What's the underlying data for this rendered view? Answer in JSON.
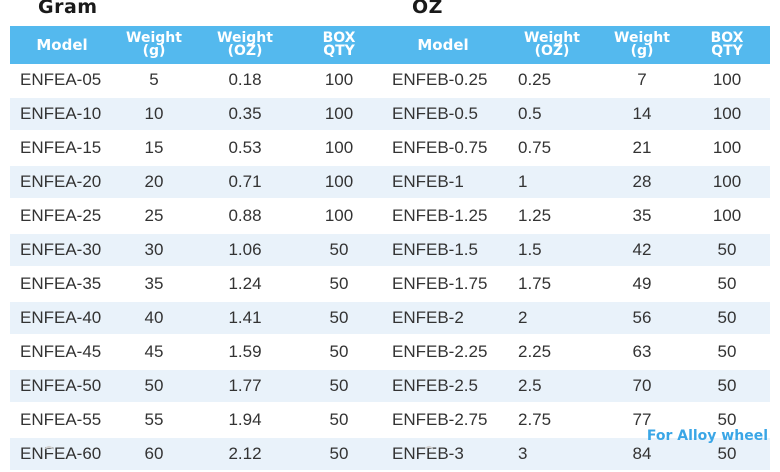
{
  "gram": {
    "title": "Gram",
    "headers": {
      "model": "Model",
      "weight_g_line1": "Weight",
      "weight_g_line2": "(g)",
      "weight_oz_line1": "Weight",
      "weight_oz_line2": "(OZ)",
      "box_line1": "BOX",
      "box_line2": "QTY"
    },
    "rows": [
      {
        "model": "ENFEA-05",
        "weight_g": "5",
        "weight_oz": "0.18",
        "box_qty": "100"
      },
      {
        "model": "ENFEA-10",
        "weight_g": "10",
        "weight_oz": "0.35",
        "box_qty": "100"
      },
      {
        "model": "ENFEA-15",
        "weight_g": "15",
        "weight_oz": "0.53",
        "box_qty": "100"
      },
      {
        "model": "ENFEA-20",
        "weight_g": "20",
        "weight_oz": "0.71",
        "box_qty": "100"
      },
      {
        "model": "ENFEA-25",
        "weight_g": "25",
        "weight_oz": "0.88",
        "box_qty": "100"
      },
      {
        "model": "ENFEA-30",
        "weight_g": "30",
        "weight_oz": "1.06",
        "box_qty": "50"
      },
      {
        "model": "ENFEA-35",
        "weight_g": "35",
        "weight_oz": "1.24",
        "box_qty": "50"
      },
      {
        "model": "ENFEA-40",
        "weight_g": "40",
        "weight_oz": "1.41",
        "box_qty": "50"
      },
      {
        "model": "ENFEA-45",
        "weight_g": "45",
        "weight_oz": "1.59",
        "box_qty": "50"
      },
      {
        "model": "ENFEA-50",
        "weight_g": "50",
        "weight_oz": "1.77",
        "box_qty": "50"
      },
      {
        "model": "ENFEA-55",
        "weight_g": "55",
        "weight_oz": "1.94",
        "box_qty": "50"
      },
      {
        "model": "ENFEA-60",
        "weight_g": "60",
        "weight_oz": "2.12",
        "box_qty": "50"
      }
    ]
  },
  "oz": {
    "title": "OZ",
    "headers": {
      "model": "Model",
      "weight_oz_line1": "Weight",
      "weight_oz_line2": "(OZ)",
      "weight_g_line1": "Weight",
      "weight_g_line2": "(g)",
      "box_line1": "BOX",
      "box_line2": "QTY"
    },
    "rows": [
      {
        "model": "ENFEB-0.25",
        "weight_oz": "0.25",
        "weight_g": "7",
        "box_qty": "100"
      },
      {
        "model": "ENFEB-0.5",
        "weight_oz": "0.5",
        "weight_g": "14",
        "box_qty": "100"
      },
      {
        "model": "ENFEB-0.75",
        "weight_oz": "0.75",
        "weight_g": "21",
        "box_qty": "100"
      },
      {
        "model": "ENFEB-1",
        "weight_oz": "1",
        "weight_g": "28",
        "box_qty": "100"
      },
      {
        "model": "ENFEB-1.25",
        "weight_oz": "1.25",
        "weight_g": "35",
        "box_qty": "100"
      },
      {
        "model": "ENFEB-1.5",
        "weight_oz": "1.5",
        "weight_g": "42",
        "box_qty": "50"
      },
      {
        "model": "ENFEB-1.75",
        "weight_oz": "1.75",
        "weight_g": "49",
        "box_qty": "50"
      },
      {
        "model": "ENFEB-2",
        "weight_oz": "2",
        "weight_g": "56",
        "box_qty": "50"
      },
      {
        "model": "ENFEB-2.25",
        "weight_oz": "2.25",
        "weight_g": "63",
        "box_qty": "50"
      },
      {
        "model": "ENFEB-2.5",
        "weight_oz": "2.5",
        "weight_g": "70",
        "box_qty": "50"
      },
      {
        "model": "ENFEB-2.75",
        "weight_oz": "2.75",
        "weight_g": "77",
        "box_qty": "50"
      },
      {
        "model": "ENFEB-3",
        "weight_oz": "3",
        "weight_g": "84",
        "box_qty": "50"
      }
    ]
  },
  "footer_note": "For Alloy wheel",
  "colors": {
    "header_bg": "#54b9ee",
    "row_stripe": "#e9f2fa",
    "footer_text": "#3aa6e6"
  }
}
